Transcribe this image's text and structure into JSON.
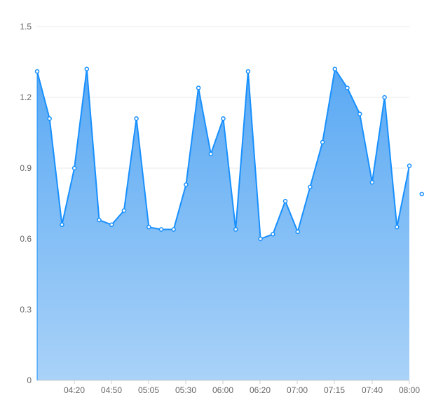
{
  "chart_data": {
    "type": "area",
    "title": "",
    "xlabel": "",
    "ylabel": "",
    "ylim": [
      0,
      1.5
    ],
    "y_ticks": [
      "0",
      "0.3",
      "0.6",
      "0.9",
      "1.2",
      "1.5"
    ],
    "x_tick_labels": [
      "04:20",
      "04:50",
      "05:05",
      "05:30",
      "06:00",
      "06:20",
      "07:00",
      "07:15",
      "07:40",
      "08:00"
    ],
    "grid": true,
    "legend": "none",
    "colors": {
      "line": "#1890ff",
      "area_top": "#5aa9f3",
      "area_bottom": "#a9d2f8",
      "point_fill": "#ffffff",
      "grid": "#e8e8e8",
      "axis": "#cccccc",
      "tick_text": "#666666"
    },
    "series": [
      {
        "values": [
          1.31,
          1.11,
          0.66,
          0.9,
          1.32,
          0.68,
          0.66,
          0.72,
          1.11,
          0.65,
          0.64,
          0.64,
          0.83,
          1.24,
          0.96,
          1.11,
          0.64,
          1.31,
          0.6,
          0.62,
          0.76,
          0.63,
          0.82,
          1.01,
          1.32,
          1.24,
          1.13,
          0.84,
          1.2,
          0.65,
          0.91,
          0.79
        ]
      }
    ]
  }
}
